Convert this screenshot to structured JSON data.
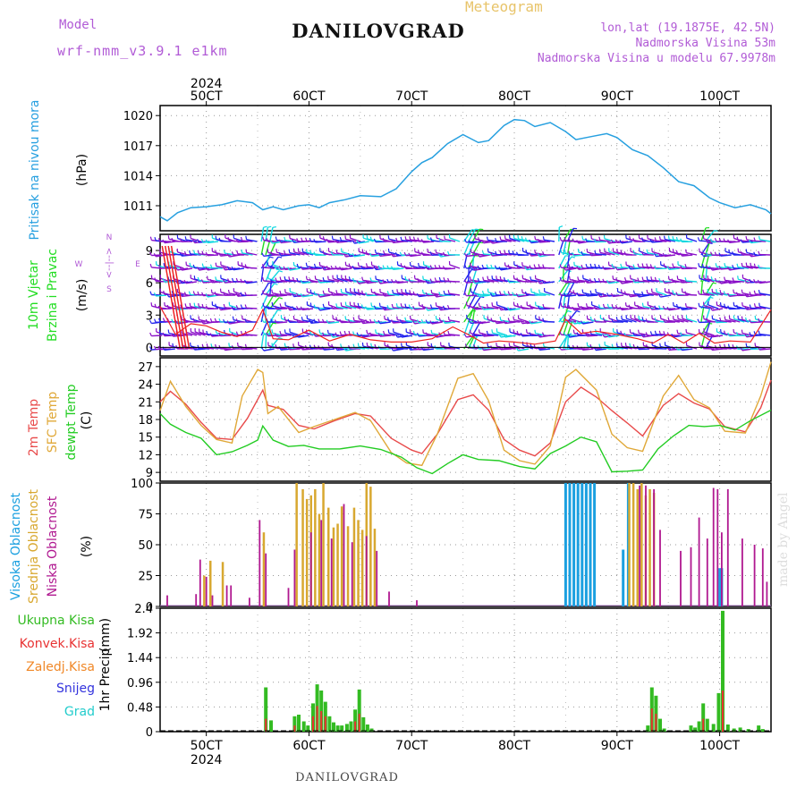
{
  "header": {
    "app_title": "Meteogram",
    "station": "DANILOVGRAD",
    "model_label": "Model",
    "model_name": "wrf-nmm_v3.9.1 e1km",
    "lonlat": "lon,lat (19.1875E, 42.5N)",
    "elevation": "Nadmorska Visina 53m",
    "model_elevation": "Nadmorska Visina u modelu 67.9978m",
    "footer_station": "DANILOVGRAD",
    "credit": "made by Angel"
  },
  "colors": {
    "pressure": "#27a0e0",
    "wind_cyan": "#10d8e0",
    "wind_blue": "#2222ee",
    "wind_purple": "#8a10c8",
    "wind_green": "#22dd22",
    "wind_red": "#ee2222",
    "temp_2m": "#e84a4a",
    "temp_sfc": "#e0a838",
    "dewpoint": "#22cc22",
    "cloud_high": "#1ba0e0",
    "cloud_mid": "#d8a830",
    "cloud_low": "#b01890",
    "precip_total": "#33bb22",
    "precip_conv": "#e83232",
    "precip_frz": "#f08828",
    "snow": "#3333dd",
    "graupel": "#22cccc",
    "compass": "#b15bd6"
  },
  "chart_data": [
    {
      "type": "line",
      "panel": "pressure",
      "ylabel": "Pritisak na nivou mora",
      "unit": "(hPa)",
      "ylim": [
        1008.5,
        1021
      ],
      "yticks": [
        1011,
        1014,
        1017,
        1020
      ],
      "x_top_labels": [
        "50CT",
        "60CT",
        "70CT",
        "80CT",
        "90CT",
        "100CT"
      ],
      "x_top_year": "2024",
      "x_day_range": [
        4.55,
        10.5
      ],
      "grid": true,
      "series": [
        {
          "x": [
            4.55,
            4.62,
            4.72,
            4.85,
            5.0,
            5.15,
            5.3,
            5.45,
            5.55,
            5.65,
            5.75,
            5.9,
            6.0,
            6.1,
            6.2,
            6.35,
            6.5,
            6.7,
            6.85,
            7.0,
            7.1,
            7.2,
            7.35,
            7.5,
            7.65,
            7.75,
            7.9,
            8.0,
            8.1,
            8.2,
            8.35,
            8.5,
            8.6,
            8.75,
            8.9,
            9.0,
            9.15,
            9.3,
            9.45,
            9.6,
            9.75,
            9.9,
            10.0,
            10.15,
            10.3,
            10.45,
            10.5
          ],
          "values": [
            1009.9,
            1009.5,
            1010.3,
            1010.8,
            1010.9,
            1011.1,
            1011.5,
            1011.3,
            1010.6,
            1010.9,
            1010.6,
            1011.0,
            1011.1,
            1010.8,
            1011.3,
            1011.6,
            1012.0,
            1011.9,
            1012.7,
            1014.4,
            1015.3,
            1015.8,
            1017.2,
            1018.1,
            1017.3,
            1017.5,
            1019.0,
            1019.6,
            1019.5,
            1018.9,
            1019.3,
            1018.4,
            1017.6,
            1017.9,
            1018.2,
            1017.8,
            1016.6,
            1016.0,
            1014.8,
            1013.4,
            1013.0,
            1011.8,
            1011.3,
            1010.8,
            1011.1,
            1010.6,
            1010.2
          ]
        }
      ]
    },
    {
      "type": "line",
      "panel": "wind",
      "ylabel": "10m Vjetar",
      "ylabel2": "Brzina i Pravac",
      "unit": "(m/s)",
      "ylim": [
        -0.8,
        10.5
      ],
      "yticks": [
        0,
        3,
        6,
        9
      ],
      "compass": {
        "n": "N",
        "s": "S",
        "e": "E",
        "w": "W",
        "arrows": "<--|-->"
      },
      "series": [
        {
          "name": "speed",
          "x": [
            4.55,
            4.7,
            4.85,
            5.0,
            5.15,
            5.3,
            5.45,
            5.55,
            5.65,
            5.8,
            6.0,
            6.2,
            6.4,
            6.6,
            6.8,
            7.0,
            7.2,
            7.4,
            7.55,
            7.7,
            7.85,
            8.0,
            8.2,
            8.4,
            8.5,
            8.65,
            8.8,
            9.0,
            9.2,
            9.35,
            9.5,
            9.65,
            9.8,
            9.95,
            10.1,
            10.3,
            10.5
          ],
          "values": [
            3.8,
            1.2,
            2.2,
            2.0,
            1.4,
            1.0,
            1.6,
            3.5,
            0.8,
            0.7,
            1.6,
            0.6,
            1.2,
            0.7,
            0.5,
            0.5,
            0.8,
            1.9,
            1.2,
            0.4,
            0.6,
            0.5,
            0.3,
            0.6,
            2.6,
            1.3,
            1.5,
            1.2,
            0.8,
            0.4,
            1.2,
            0.4,
            1.3,
            0.4,
            0.6,
            0.5,
            3.5
          ]
        }
      ]
    },
    {
      "type": "line",
      "panel": "temperature",
      "ylabel": "2m Temp",
      "ylabel2": "SFC Temp",
      "ylabel3": "dewpt Temp",
      "unit": "(C)",
      "ylim": [
        7.5,
        28.5
      ],
      "yticks": [
        9,
        12,
        15,
        18,
        21,
        24,
        27
      ],
      "series": [
        {
          "name": "2m Temp",
          "x": [
            4.55,
            4.65,
            4.8,
            4.95,
            5.1,
            5.25,
            5.4,
            5.55,
            5.6,
            5.75,
            5.9,
            6.05,
            6.25,
            6.45,
            6.6,
            6.8,
            7.0,
            7.1,
            7.25,
            7.45,
            7.6,
            7.75,
            7.9,
            8.05,
            8.2,
            8.35,
            8.5,
            8.65,
            8.8,
            8.95,
            9.1,
            9.25,
            9.45,
            9.6,
            9.75,
            9.9,
            10.05,
            10.25,
            10.4,
            10.5
          ],
          "values": [
            21.0,
            22.8,
            20.6,
            17.5,
            14.8,
            14.6,
            18.2,
            23.0,
            20.4,
            19.7,
            17.0,
            16.4,
            17.8,
            19.0,
            18.6,
            14.8,
            12.8,
            12.2,
            15.5,
            21.4,
            22.2,
            19.6,
            14.6,
            12.8,
            11.8,
            14.0,
            21.0,
            23.5,
            21.8,
            19.5,
            17.4,
            15.2,
            20.4,
            22.4,
            20.8,
            19.8,
            16.8,
            15.9,
            20.0,
            24.7
          ]
        },
        {
          "name": "SFC Temp",
          "x": [
            4.55,
            4.65,
            4.8,
            4.95,
            5.1,
            5.25,
            5.35,
            5.5,
            5.55,
            5.6,
            5.7,
            5.9,
            6.05,
            6.25,
            6.45,
            6.6,
            6.8,
            6.95,
            7.1,
            7.25,
            7.45,
            7.6,
            7.75,
            7.9,
            8.05,
            8.2,
            8.35,
            8.5,
            8.6,
            8.8,
            8.95,
            9.1,
            9.25,
            9.45,
            9.6,
            9.75,
            9.9,
            10.05,
            10.25,
            10.4,
            10.5
          ],
          "values": [
            19.5,
            24.5,
            20.2,
            17.0,
            14.6,
            14.0,
            22.0,
            26.5,
            26.0,
            19.0,
            20.2,
            15.8,
            16.8,
            18.0,
            19.2,
            17.8,
            12.4,
            10.6,
            10.2,
            15.5,
            25.0,
            25.8,
            21.2,
            12.8,
            11.0,
            10.4,
            13.5,
            25.2,
            26.5,
            23.0,
            15.5,
            13.2,
            12.6,
            22.0,
            25.5,
            21.4,
            20.0,
            16.0,
            15.7,
            22.0,
            27.8
          ]
        },
        {
          "name": "dewpt Temp",
          "x": [
            4.55,
            4.65,
            4.8,
            4.95,
            5.1,
            5.25,
            5.4,
            5.5,
            5.55,
            5.65,
            5.8,
            5.95,
            6.1,
            6.3,
            6.5,
            6.7,
            6.9,
            7.05,
            7.2,
            7.35,
            7.5,
            7.65,
            7.85,
            8.05,
            8.2,
            8.35,
            8.5,
            8.65,
            8.8,
            8.95,
            9.1,
            9.25,
            9.4,
            9.55,
            9.7,
            9.85,
            10.0,
            10.15,
            10.3,
            10.5
          ],
          "values": [
            19.0,
            17.2,
            15.8,
            14.8,
            12.0,
            12.5,
            13.6,
            14.5,
            16.9,
            14.5,
            13.4,
            13.6,
            13.0,
            13.0,
            13.5,
            12.9,
            11.6,
            9.8,
            8.8,
            10.5,
            12.0,
            11.2,
            11.0,
            10.0,
            9.6,
            12.2,
            13.5,
            15.0,
            14.2,
            9.1,
            9.2,
            9.4,
            13.0,
            15.2,
            17.0,
            16.8,
            17.0,
            16.2,
            17.8,
            19.6
          ]
        }
      ]
    },
    {
      "type": "bar",
      "panel": "clouds",
      "ylabel": "Visoka Oblacnost",
      "ylabel2": "Srednja Oblacnost",
      "ylabel3": "Niska Oblacnost",
      "unit": "(%)",
      "ylim": [
        0,
        100
      ],
      "yticks": [
        0,
        25,
        50,
        75,
        100
      ],
      "series": [
        {
          "name": "Visoka Oblacnost",
          "x": [
            8.5,
            8.54,
            8.58,
            8.62,
            8.66,
            8.7,
            8.74,
            8.78,
            9.06,
            9.11,
            10.0,
            10.02
          ],
          "values": [
            100,
            100,
            100,
            100,
            100,
            100,
            100,
            100,
            46,
            100,
            31,
            31
          ]
        },
        {
          "name": "Srednja Oblacnost",
          "x": [
            4.98,
            5.04,
            5.16,
            5.56,
            5.88,
            5.94,
            5.98,
            6.02,
            6.06,
            6.1,
            6.14,
            6.19,
            6.24,
            6.28,
            6.32,
            6.38,
            6.44,
            6.48,
            6.52,
            6.56,
            6.6,
            6.64,
            9.12,
            9.16,
            9.2,
            9.24,
            9.28,
            9.32,
            9.36
          ],
          "values": [
            25,
            37,
            36,
            60,
            100,
            95,
            87,
            90,
            95,
            75,
            100,
            80,
            64,
            67,
            81,
            65,
            80,
            70,
            62,
            100,
            97,
            63,
            100,
            100,
            95,
            100,
            90,
            95,
            92
          ]
        },
        {
          "name": "Niska Oblacnost",
          "x": [
            4.62,
            4.9,
            4.94,
            5.0,
            5.06,
            5.2,
            5.24,
            5.42,
            5.52,
            5.58,
            5.8,
            5.86,
            6.02,
            6.12,
            6.22,
            6.34,
            6.42,
            6.56,
            6.66,
            6.78,
            7.05,
            9.22,
            9.28,
            9.36,
            9.42,
            9.62,
            9.72,
            9.8,
            9.88,
            9.94,
            9.98,
            10.02,
            10.08,
            10.22,
            10.34,
            10.42,
            10.46
          ],
          "values": [
            9,
            10,
            38,
            24,
            9,
            17,
            17,
            7,
            70,
            43,
            15,
            46,
            60,
            70,
            55,
            83,
            52,
            57,
            45,
            12,
            5,
            98,
            98,
            95,
            62,
            45,
            48,
            72,
            55,
            96,
            95,
            60,
            95,
            55,
            50,
            47,
            20
          ]
        }
      ]
    },
    {
      "type": "bar",
      "panel": "precip",
      "ylabel": "1hr Precip",
      "unit": "(mm)",
      "ylim": [
        0,
        2.4
      ],
      "yticks": [
        0,
        0.48,
        0.96,
        1.44,
        1.92,
        2.4
      ],
      "x_bottom_labels": [
        "50CT",
        "60CT",
        "70CT",
        "80CT",
        "90CT",
        "100CT"
      ],
      "x_bottom_year": "2024",
      "legend": [
        "Ukupna Kisa",
        "Konvek.Kisa",
        "Zaledj.Kisa",
        "Snijeg",
        "Grad"
      ],
      "series": [
        {
          "name": "Ukupna Kisa",
          "x": [
            5.58,
            5.63,
            5.86,
            5.9,
            5.95,
            5.99,
            6.04,
            6.08,
            6.12,
            6.16,
            6.2,
            6.24,
            6.28,
            6.32,
            6.37,
            6.41,
            6.45,
            6.49,
            6.53,
            6.57,
            6.61,
            9.3,
            9.34,
            9.38,
            9.42,
            9.46,
            9.72,
            9.76,
            9.8,
            9.84,
            9.88,
            9.94,
            9.99,
            10.03,
            10.08,
            10.14,
            10.2,
            10.28,
            10.38,
            10.42
          ],
          "values": [
            0.86,
            0.22,
            0.3,
            0.33,
            0.2,
            0.12,
            0.55,
            0.92,
            0.8,
            0.58,
            0.3,
            0.18,
            0.12,
            0.12,
            0.15,
            0.2,
            0.43,
            0.82,
            0.28,
            0.14,
            0.06,
            0.12,
            0.86,
            0.7,
            0.25,
            0.06,
            0.12,
            0.08,
            0.2,
            0.55,
            0.25,
            0.15,
            0.75,
            2.35,
            0.14,
            0.06,
            0.08,
            0.05,
            0.12,
            0.05
          ]
        },
        {
          "name": "Konvek.Kisa",
          "x": [
            5.58,
            5.86,
            6.04,
            6.08,
            6.12,
            6.16,
            6.45,
            6.49,
            9.34,
            9.38,
            9.84,
            10.03
          ],
          "values": [
            0.25,
            0.12,
            0.3,
            0.5,
            0.4,
            0.3,
            0.2,
            0.35,
            0.45,
            0.35,
            0.25,
            0.8
          ]
        }
      ]
    }
  ]
}
